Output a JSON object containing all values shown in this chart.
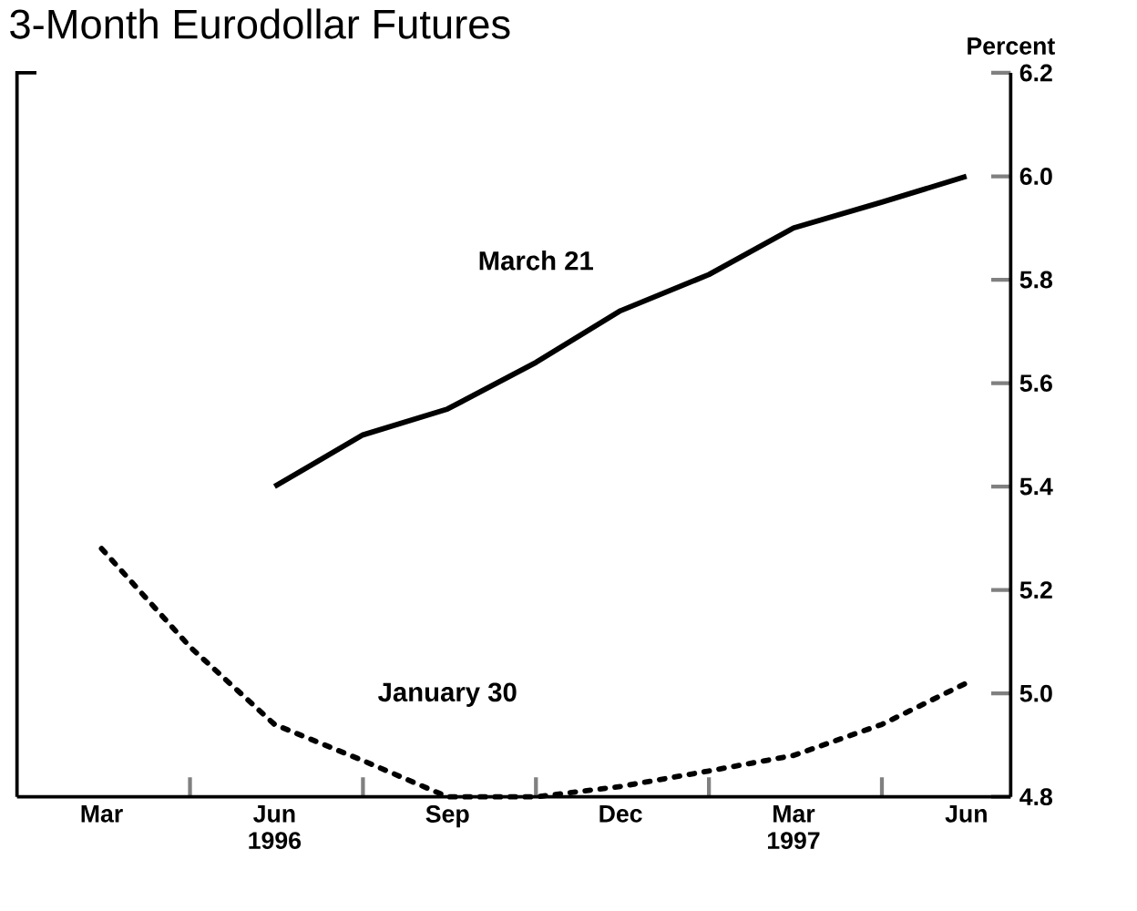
{
  "chart_data": {
    "type": "line",
    "title": "3-Month Eurodollar Futures",
    "ylabel": "Percent",
    "series": [
      {
        "name": "March 21",
        "color": "#000000",
        "line_style": "solid",
        "x": [
          "1996-06-15",
          "1996-08-01",
          "1996-09-15",
          "1996-11-01",
          "1996-12-15",
          "1997-02-01",
          "1997-03-15",
          "1997-05-01",
          "1997-06-15"
        ],
        "values": [
          5.4,
          5.5,
          5.55,
          5.64,
          5.74,
          5.81,
          5.9,
          5.95,
          6.0
        ]
      },
      {
        "name": "January 30",
        "color": "#000000",
        "line_style": "dotted",
        "x": [
          "1996-03-15",
          "1996-05-01",
          "1996-06-15",
          "1996-08-01",
          "1996-09-15",
          "1996-11-01",
          "1996-12-15",
          "1997-02-01",
          "1997-03-15",
          "1997-05-01",
          "1997-06-15"
        ],
        "values": [
          5.28,
          5.09,
          4.94,
          4.87,
          4.8,
          4.8,
          4.82,
          4.85,
          4.88,
          4.94,
          5.02
        ]
      }
    ],
    "xlim": [
      "1996-02-01",
      "1997-07-08"
    ],
    "ylim": [
      4.8,
      6.2
    ],
    "xticks": [
      {
        "value": "1996-03-15",
        "label": "Mar"
      },
      {
        "value": "1996-05-01",
        "label": null
      },
      {
        "value": "1996-06-15",
        "label": "Jun 1996"
      },
      {
        "value": "1996-08-01",
        "label": null
      },
      {
        "value": "1996-09-15",
        "label": "Sep"
      },
      {
        "value": "1996-11-01",
        "label": null
      },
      {
        "value": "1996-12-15",
        "label": "Dec"
      },
      {
        "value": "1997-02-01",
        "label": null
      },
      {
        "value": "1997-03-15",
        "label": "Mar 1997"
      },
      {
        "value": "1997-05-01",
        "label": null
      },
      {
        "value": "1997-06-15",
        "label": "Jun"
      }
    ],
    "yticks": [
      {
        "value": 4.8,
        "label": "4.8"
      },
      {
        "value": 5.0,
        "label": "5.0"
      },
      {
        "value": 5.2,
        "label": "5.2"
      },
      {
        "value": 5.4,
        "label": "5.4"
      },
      {
        "value": 5.6,
        "label": "5.6"
      },
      {
        "value": 5.8,
        "label": "5.8"
      },
      {
        "value": 6.0,
        "label": "6.0"
      },
      {
        "value": 6.2,
        "label": "6.2"
      }
    ],
    "grid": false,
    "legend": false,
    "marker": "none"
  }
}
